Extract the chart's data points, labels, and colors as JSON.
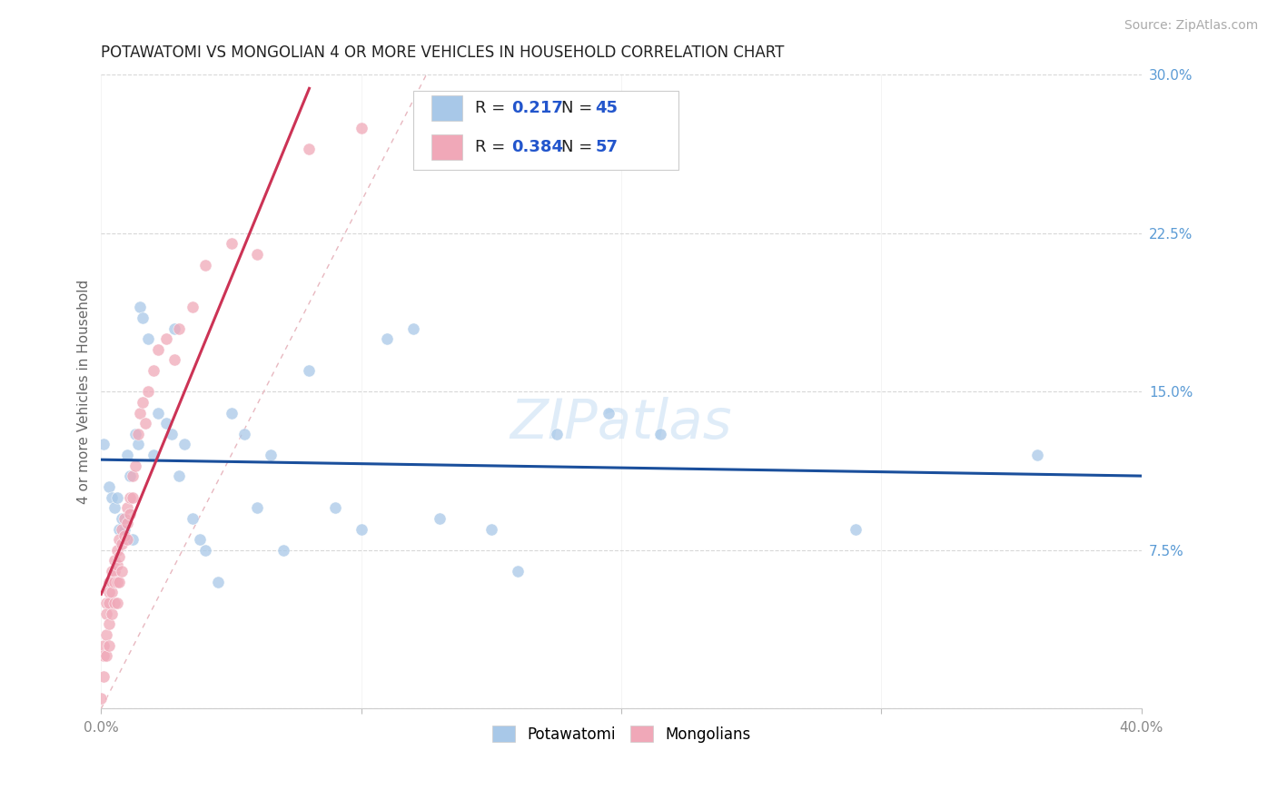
{
  "title": "POTAWATOMI VS MONGOLIAN 4 OR MORE VEHICLES IN HOUSEHOLD CORRELATION CHART",
  "source": "Source: ZipAtlas.com",
  "ylabel": "4 or more Vehicles in Household",
  "xlim": [
    0.0,
    0.4
  ],
  "ylim": [
    0.0,
    0.3
  ],
  "xticks": [
    0.0,
    0.1,
    0.2,
    0.3,
    0.4
  ],
  "xtick_labels": [
    "0.0%",
    "",
    "",
    "",
    "40.0%"
  ],
  "yticks_right": [
    0.075,
    0.15,
    0.225,
    0.3
  ],
  "ytick_labels_right": [
    "7.5%",
    "15.0%",
    "22.5%",
    "30.0%"
  ],
  "yticks_grid": [
    0.0,
    0.075,
    0.15,
    0.225,
    0.3
  ],
  "potawatomi_R": 0.217,
  "potawatomi_N": 45,
  "mongolian_R": 0.384,
  "mongolian_N": 57,
  "blue_color": "#a8c8e8",
  "pink_color": "#f0a8b8",
  "blue_line_color": "#1a4f9c",
  "pink_line_color": "#cc3355",
  "ref_line_color": "#e8b8c0",
  "legend_num_color": "#2255cc",
  "watermark": "ZIPatlas",
  "background_color": "#ffffff",
  "grid_color": "#d8d8d8",
  "title_color": "#222222",
  "axis_tick_color": "#888888",
  "right_tick_color": "#5b9bd5",
  "potawatomi_x": [
    0.001,
    0.003,
    0.004,
    0.005,
    0.006,
    0.007,
    0.008,
    0.009,
    0.01,
    0.011,
    0.012,
    0.013,
    0.014,
    0.015,
    0.016,
    0.018,
    0.02,
    0.022,
    0.025,
    0.027,
    0.028,
    0.03,
    0.032,
    0.035,
    0.038,
    0.04,
    0.045,
    0.05,
    0.055,
    0.06,
    0.065,
    0.07,
    0.08,
    0.09,
    0.1,
    0.11,
    0.12,
    0.13,
    0.15,
    0.16,
    0.175,
    0.195,
    0.215,
    0.29,
    0.36
  ],
  "potawatomi_y": [
    0.125,
    0.105,
    0.1,
    0.095,
    0.1,
    0.085,
    0.09,
    0.085,
    0.12,
    0.11,
    0.08,
    0.13,
    0.125,
    0.19,
    0.185,
    0.175,
    0.12,
    0.14,
    0.135,
    0.13,
    0.18,
    0.11,
    0.125,
    0.09,
    0.08,
    0.075,
    0.06,
    0.14,
    0.13,
    0.095,
    0.12,
    0.075,
    0.16,
    0.095,
    0.085,
    0.175,
    0.18,
    0.09,
    0.085,
    0.065,
    0.13,
    0.14,
    0.13,
    0.085,
    0.12
  ],
  "mongolian_x": [
    0.0,
    0.001,
    0.001,
    0.001,
    0.002,
    0.002,
    0.002,
    0.002,
    0.003,
    0.003,
    0.003,
    0.003,
    0.003,
    0.004,
    0.004,
    0.004,
    0.004,
    0.005,
    0.005,
    0.005,
    0.005,
    0.006,
    0.006,
    0.006,
    0.006,
    0.007,
    0.007,
    0.007,
    0.008,
    0.008,
    0.008,
    0.009,
    0.009,
    0.01,
    0.01,
    0.01,
    0.011,
    0.011,
    0.012,
    0.012,
    0.013,
    0.014,
    0.015,
    0.016,
    0.017,
    0.018,
    0.02,
    0.022,
    0.025,
    0.028,
    0.03,
    0.035,
    0.04,
    0.05,
    0.06,
    0.08,
    0.1
  ],
  "mongolian_y": [
    0.005,
    0.03,
    0.025,
    0.015,
    0.05,
    0.045,
    0.035,
    0.025,
    0.06,
    0.055,
    0.05,
    0.04,
    0.03,
    0.065,
    0.06,
    0.055,
    0.045,
    0.07,
    0.065,
    0.06,
    0.05,
    0.075,
    0.068,
    0.06,
    0.05,
    0.08,
    0.072,
    0.06,
    0.085,
    0.078,
    0.065,
    0.09,
    0.082,
    0.095,
    0.088,
    0.08,
    0.1,
    0.092,
    0.11,
    0.1,
    0.115,
    0.13,
    0.14,
    0.145,
    0.135,
    0.15,
    0.16,
    0.17,
    0.175,
    0.165,
    0.18,
    0.19,
    0.21,
    0.22,
    0.215,
    0.265,
    0.275
  ]
}
